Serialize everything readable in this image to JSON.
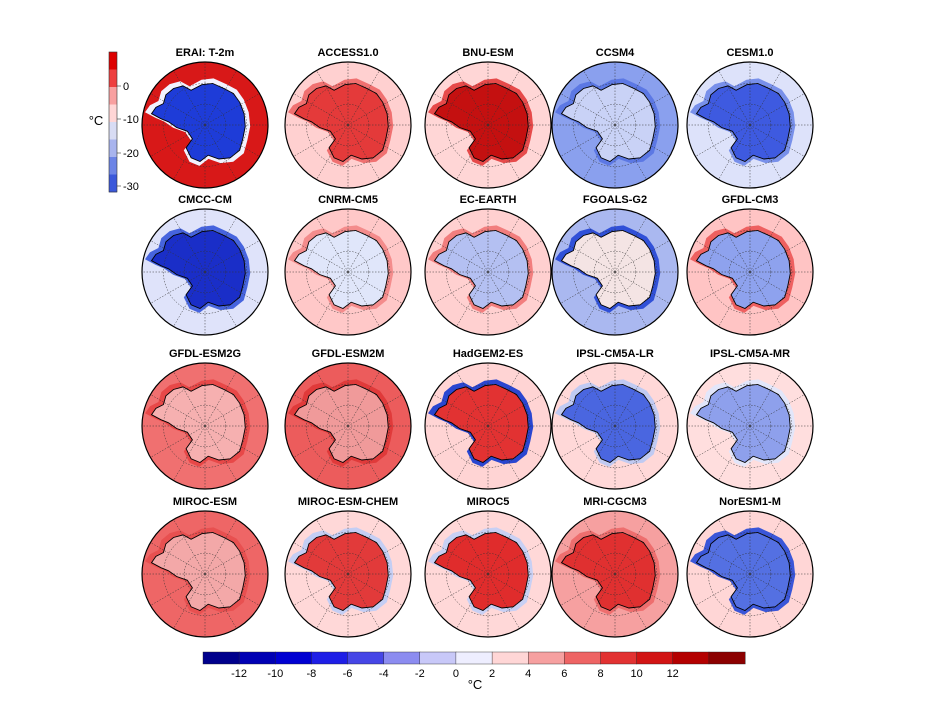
{
  "reference": {
    "title": "ERAI: T-2m",
    "colorbar": {
      "unit": "°C",
      "ticks": [
        "0",
        "-10",
        "-20",
        "-30"
      ],
      "colors": [
        "#dd0000",
        "#ee4040",
        "#f8a0a0",
        "#ffd6d6",
        "#d8dcf4",
        "#a8b4ee",
        "#6c84e6",
        "#3a58da"
      ]
    }
  },
  "panels": [
    {
      "title": "ERAI: T-2m",
      "land": "#1e3cd8",
      "ocean": "#d81818",
      "band": "#f2f2ff"
    },
    {
      "title": "ACCESS1.0",
      "land": "#e43a3a",
      "ocean": "#ffd0d0",
      "band": "#f07070"
    },
    {
      "title": "BNU-ESM",
      "land": "#c41010",
      "ocean": "#ffd6d6",
      "band": "#e64a4a"
    },
    {
      "title": "CCSM4",
      "land": "#c9d2f6",
      "ocean": "#8aa0ee",
      "band": "#5c78e4"
    },
    {
      "title": "CESM1.0",
      "land": "#3e5ae0",
      "ocean": "#dde2fa",
      "band": "#7890ea"
    },
    {
      "title": "CMCC-CM",
      "land": "#1a2ec8",
      "ocean": "#dfe3fa",
      "band": "#4664de"
    },
    {
      "title": "CNRM-CM5",
      "land": "#e0e6fa",
      "ocean": "#ffc8c8",
      "band": "#f48c8c"
    },
    {
      "title": "EC-EARTH",
      "land": "#b4c0f2",
      "ocean": "#ffd0d0",
      "band": "#f27e7e"
    },
    {
      "title": "FGOALS-G2",
      "land": "#f4e4e4",
      "ocean": "#aab8f0",
      "band": "#3050d8"
    },
    {
      "title": "GFDL-CM3",
      "land": "#8ea2ee",
      "ocean": "#ffc4c4",
      "band": "#ee6060"
    },
    {
      "title": "GFDL-ESM2G",
      "land": "#f6b0b0",
      "ocean": "#f07070",
      "band": "#e84848"
    },
    {
      "title": "GFDL-ESM2M",
      "land": "#f09a9a",
      "ocean": "#ec5c5c",
      "band": "#e03a3a"
    },
    {
      "title": "HadGEM2-ES",
      "land": "#e23232",
      "ocean": "#ffd4d4",
      "band": "#2a46d0"
    },
    {
      "title": "IPSL-CM5A-LR",
      "land": "#4a66e0",
      "ocean": "#ffd8d8",
      "band": "#c0caf2"
    },
    {
      "title": "IPSL-CM5A-MR",
      "land": "#8ea0ec",
      "ocean": "#ffdede",
      "band": "#e2e6fa"
    },
    {
      "title": "MIROC-ESM",
      "land": "#f3a8a8",
      "ocean": "#ee6666",
      "band": "#e85050"
    },
    {
      "title": "MIROC-ESM-CHEM",
      "land": "#e23a3a",
      "ocean": "#ffd8d8",
      "band": "#c4cef4"
    },
    {
      "title": "MIROC5",
      "land": "#e02c2c",
      "ocean": "#ffd8d8",
      "band": "#c8d0f4"
    },
    {
      "title": "MRI-CGCM3",
      "land": "#e03030",
      "ocean": "#f6a0a0",
      "band": "#ee6e6e"
    },
    {
      "title": "NorESM1-M",
      "land": "#5470e2",
      "ocean": "#ffd6d6",
      "band": "#3a56d8"
    }
  ],
  "colorbar": {
    "unit": "°C",
    "ticks": [
      "-12",
      "-10",
      "-8",
      "-6",
      "-4",
      "-2",
      "0",
      "2",
      "4",
      "6",
      "8",
      "10",
      "12"
    ],
    "colors": [
      "#00008c",
      "#0000b4",
      "#0000d2",
      "#1e1ee6",
      "#4646e6",
      "#8c8cf0",
      "#c8c8f8",
      "#eeeeff",
      "#ffd6d6",
      "#f6a0a0",
      "#ee6464",
      "#e23232",
      "#d21414",
      "#b40000",
      "#8c0000"
    ]
  }
}
